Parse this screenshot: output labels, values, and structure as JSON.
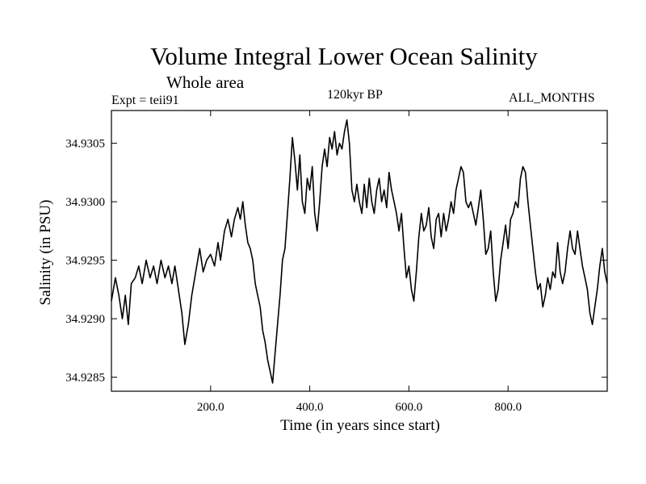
{
  "header": {
    "title": "Volume Integral Lower Ocean Salinity",
    "subtitle": "Whole area",
    "expt": "Expt = teii91",
    "period": "120kyr BP",
    "months": "ALL_MONTHS"
  },
  "chart_data": {
    "type": "line",
    "title": "Volume Integral Lower Ocean Salinity",
    "xlabel": "Time (in years since start)",
    "ylabel": "Salinity (in PSU)",
    "xlim": [
      0,
      1000
    ],
    "ylim": [
      34.92838,
      34.93078
    ],
    "x_ticks": [
      200,
      400,
      600,
      800
    ],
    "x_tick_labels": [
      "200.0",
      "400.0",
      "600.0",
      "800.0"
    ],
    "y_ticks": [
      34.9285,
      34.929,
      34.9295,
      34.93,
      34.9305
    ],
    "y_tick_labels": [
      "34.9285",
      "34.9290",
      "34.9295",
      "34.9300",
      "34.9305"
    ],
    "grid": false,
    "series": [
      {
        "color": "#000000",
        "points": [
          [
            0,
            34.92915
          ],
          [
            8,
            34.92935
          ],
          [
            15,
            34.9292
          ],
          [
            22,
            34.929
          ],
          [
            28,
            34.9292
          ],
          [
            34,
            34.92895
          ],
          [
            40,
            34.9293
          ],
          [
            48,
            34.92935
          ],
          [
            55,
            34.92945
          ],
          [
            62,
            34.9293
          ],
          [
            70,
            34.9295
          ],
          [
            78,
            34.92935
          ],
          [
            85,
            34.92945
          ],
          [
            92,
            34.9293
          ],
          [
            100,
            34.9295
          ],
          [
            108,
            34.92935
          ],
          [
            115,
            34.92945
          ],
          [
            122,
            34.9293
          ],
          [
            128,
            34.92945
          ],
          [
            135,
            34.92925
          ],
          [
            142,
            34.92905
          ],
          [
            148,
            34.92878
          ],
          [
            155,
            34.92895
          ],
          [
            162,
            34.9292
          ],
          [
            170,
            34.9294
          ],
          [
            178,
            34.9296
          ],
          [
            185,
            34.9294
          ],
          [
            192,
            34.9295
          ],
          [
            200,
            34.92955
          ],
          [
            208,
            34.92945
          ],
          [
            215,
            34.92965
          ],
          [
            220,
            34.9295
          ],
          [
            228,
            34.92975
          ],
          [
            235,
            34.92985
          ],
          [
            242,
            34.9297
          ],
          [
            248,
            34.92985
          ],
          [
            255,
            34.92995
          ],
          [
            260,
            34.92985
          ],
          [
            265,
            34.93
          ],
          [
            270,
            34.9298
          ],
          [
            275,
            34.92965
          ],
          [
            280,
            34.9296
          ],
          [
            285,
            34.9295
          ],
          [
            290,
            34.9293
          ],
          [
            295,
            34.9292
          ],
          [
            300,
            34.9291
          ],
          [
            305,
            34.9289
          ],
          [
            310,
            34.9288
          ],
          [
            315,
            34.92865
          ],
          [
            320,
            34.92855
          ],
          [
            325,
            34.92845
          ],
          [
            330,
            34.9287
          ],
          [
            335,
            34.92895
          ],
          [
            340,
            34.9292
          ],
          [
            345,
            34.9295
          ],
          [
            350,
            34.9296
          ],
          [
            355,
            34.9299
          ],
          [
            360,
            34.9302
          ],
          [
            365,
            34.93055
          ],
          [
            370,
            34.93035
          ],
          [
            375,
            34.9301
          ],
          [
            380,
            34.9304
          ],
          [
            385,
            34.93
          ],
          [
            390,
            34.9299
          ],
          [
            395,
            34.9302
          ],
          [
            400,
            34.9301
          ],
          [
            405,
            34.9303
          ],
          [
            410,
            34.9299
          ],
          [
            415,
            34.92975
          ],
          [
            420,
            34.93
          ],
          [
            425,
            34.9303
          ],
          [
            430,
            34.93045
          ],
          [
            435,
            34.9303
          ],
          [
            440,
            34.93055
          ],
          [
            445,
            34.93045
          ],
          [
            450,
            34.9306
          ],
          [
            455,
            34.9304
          ],
          [
            460,
            34.9305
          ],
          [
            465,
            34.93045
          ],
          [
            470,
            34.9306
          ],
          [
            475,
            34.9307
          ],
          [
            480,
            34.9305
          ],
          [
            485,
            34.9301
          ],
          [
            490,
            34.93
          ],
          [
            495,
            34.93015
          ],
          [
            500,
            34.93
          ],
          [
            505,
            34.9299
          ],
          [
            510,
            34.93015
          ],
          [
            515,
            34.92995
          ],
          [
            520,
            34.9302
          ],
          [
            525,
            34.93
          ],
          [
            530,
            34.9299
          ],
          [
            535,
            34.9301
          ],
          [
            540,
            34.9302
          ],
          [
            545,
            34.93
          ],
          [
            550,
            34.9301
          ],
          [
            555,
            34.92995
          ],
          [
            560,
            34.93025
          ],
          [
            565,
            34.9301
          ],
          [
            570,
            34.93
          ],
          [
            575,
            34.9299
          ],
          [
            580,
            34.92975
          ],
          [
            585,
            34.9299
          ],
          [
            590,
            34.9296
          ],
          [
            595,
            34.92935
          ],
          [
            600,
            34.92945
          ],
          [
            605,
            34.92925
          ],
          [
            610,
            34.92915
          ],
          [
            615,
            34.9294
          ],
          [
            620,
            34.9297
          ],
          [
            625,
            34.9299
          ],
          [
            630,
            34.92975
          ],
          [
            635,
            34.9298
          ],
          [
            640,
            34.92995
          ],
          [
            645,
            34.9297
          ],
          [
            650,
            34.9296
          ],
          [
            655,
            34.92985
          ],
          [
            660,
            34.9299
          ],
          [
            665,
            34.9297
          ],
          [
            670,
            34.9299
          ],
          [
            675,
            34.92975
          ],
          [
            680,
            34.92985
          ],
          [
            685,
            34.93
          ],
          [
            690,
            34.9299
          ],
          [
            695,
            34.9301
          ],
          [
            700,
            34.9302
          ],
          [
            705,
            34.9303
          ],
          [
            710,
            34.93025
          ],
          [
            715,
            34.93
          ],
          [
            720,
            34.92995
          ],
          [
            725,
            34.93
          ],
          [
            730,
            34.9299
          ],
          [
            735,
            34.9298
          ],
          [
            740,
            34.92995
          ],
          [
            745,
            34.9301
          ],
          [
            750,
            34.92985
          ],
          [
            755,
            34.92955
          ],
          [
            760,
            34.9296
          ],
          [
            765,
            34.92975
          ],
          [
            770,
            34.9294
          ],
          [
            775,
            34.92915
          ],
          [
            780,
            34.92925
          ],
          [
            785,
            34.9295
          ],
          [
            790,
            34.92965
          ],
          [
            795,
            34.9298
          ],
          [
            800,
            34.9296
          ],
          [
            805,
            34.92985
          ],
          [
            810,
            34.9299
          ],
          [
            815,
            34.93
          ],
          [
            820,
            34.92995
          ],
          [
            825,
            34.9302
          ],
          [
            830,
            34.9303
          ],
          [
            835,
            34.93025
          ],
          [
            840,
            34.93
          ],
          [
            845,
            34.9298
          ],
          [
            850,
            34.9296
          ],
          [
            855,
            34.9294
          ],
          [
            860,
            34.92925
          ],
          [
            865,
            34.9293
          ],
          [
            870,
            34.9291
          ],
          [
            875,
            34.9292
          ],
          [
            880,
            34.92935
          ],
          [
            885,
            34.92925
          ],
          [
            890,
            34.9294
          ],
          [
            895,
            34.92935
          ],
          [
            900,
            34.92965
          ],
          [
            905,
            34.9294
          ],
          [
            910,
            34.9293
          ],
          [
            915,
            34.9294
          ],
          [
            920,
            34.9296
          ],
          [
            925,
            34.92975
          ],
          [
            930,
            34.9296
          ],
          [
            935,
            34.92955
          ],
          [
            940,
            34.92975
          ],
          [
            945,
            34.9296
          ],
          [
            950,
            34.92945
          ],
          [
            955,
            34.92935
          ],
          [
            960,
            34.92925
          ],
          [
            965,
            34.92905
          ],
          [
            970,
            34.92895
          ],
          [
            975,
            34.9291
          ],
          [
            980,
            34.92925
          ],
          [
            985,
            34.92945
          ],
          [
            990,
            34.9296
          ],
          [
            995,
            34.9294
          ],
          [
            1000,
            34.9293
          ]
        ]
      }
    ]
  }
}
